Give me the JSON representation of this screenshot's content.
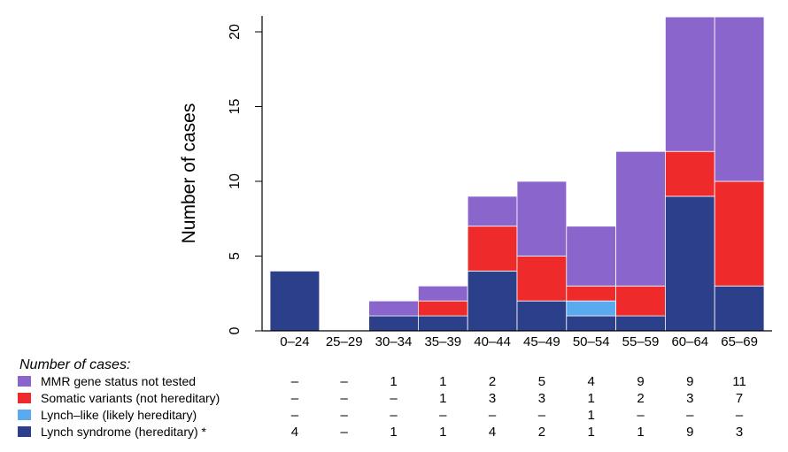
{
  "chart_data": {
    "type": "bar",
    "stacked": true,
    "ylabel": "Number of cases",
    "ylim": [
      0,
      21
    ],
    "yticks": [
      0,
      5,
      10,
      15,
      20
    ],
    "categories": [
      "0–24",
      "25–29",
      "30–34",
      "35–39",
      "40–44",
      "45–49",
      "50–54",
      "55–59",
      "60–64",
      "65–69"
    ],
    "series": [
      {
        "name": "Lynch syndrome (hereditary) *",
        "color": "#2b3f8a",
        "values": [
          4,
          0,
          1,
          1,
          4,
          2,
          1,
          1,
          9,
          3
        ]
      },
      {
        "name": "Lynch–like (likely hereditary)",
        "color": "#5aaaf0",
        "values": [
          0,
          0,
          0,
          0,
          0,
          0,
          1,
          0,
          0,
          0
        ]
      },
      {
        "name": "Somatic variants (not hereditary)",
        "color": "#ee2a2a",
        "values": [
          0,
          0,
          0,
          1,
          3,
          3,
          1,
          2,
          3,
          7
        ]
      },
      {
        "name": "MMR gene status not tested",
        "color": "#8a66cc",
        "values": [
          0,
          0,
          1,
          1,
          2,
          5,
          4,
          9,
          9,
          11
        ]
      }
    ],
    "table": {
      "title": "Number of cases:",
      "rows": [
        {
          "label": "MMR gene status not tested",
          "color": "#8a66cc",
          "cells": [
            "–",
            "–",
            "1",
            "1",
            "2",
            "5",
            "4",
            "9",
            "9",
            "11"
          ]
        },
        {
          "label": "Somatic variants (not hereditary)",
          "color": "#ee2a2a",
          "cells": [
            "–",
            "–",
            "–",
            "1",
            "3",
            "3",
            "1",
            "2",
            "3",
            "7"
          ]
        },
        {
          "label": "Lynch–like (likely hereditary)",
          "color": "#5aaaf0",
          "cells": [
            "–",
            "–",
            "–",
            "–",
            "–",
            "–",
            "1",
            "–",
            "–",
            "–"
          ]
        },
        {
          "label": "Lynch syndrome (hereditary) *",
          "color": "#2b3f8a",
          "cells": [
            "4",
            "–",
            "1",
            "1",
            "4",
            "2",
            "1",
            "1",
            "9",
            "3"
          ]
        }
      ]
    }
  }
}
